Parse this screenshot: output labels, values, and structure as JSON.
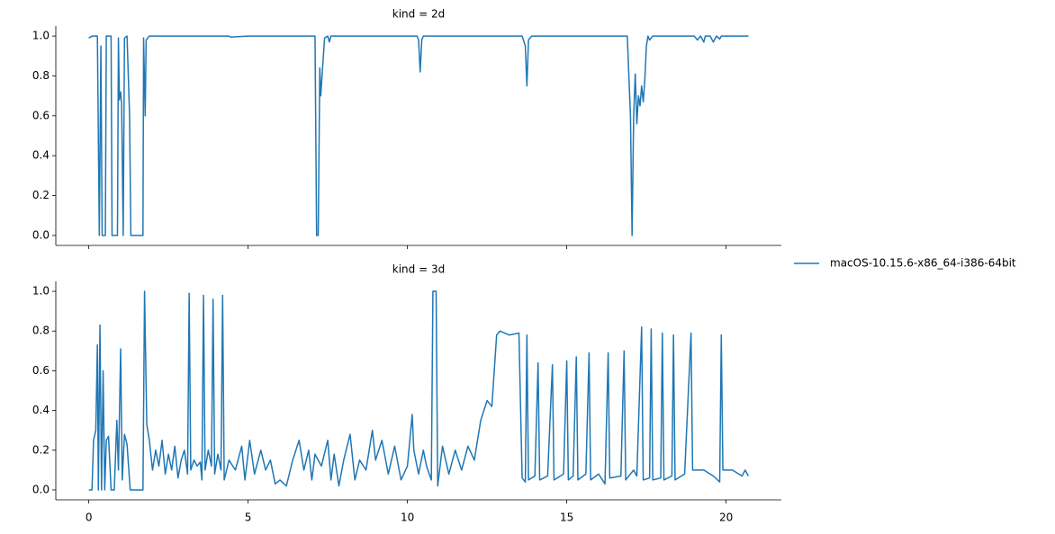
{
  "chart_data": [
    {
      "type": "line",
      "title": "kind = 2d",
      "x": [
        0,
        0.1,
        0.2,
        0.27,
        0.33,
        0.38,
        0.42,
        0.48,
        0.52,
        0.55,
        0.7,
        0.73,
        0.9,
        0.93,
        0.96,
        1.0,
        1.03,
        1.08,
        1.12,
        1.2,
        1.28,
        1.32,
        1.5,
        1.7,
        1.72,
        1.77,
        1.8,
        1.9,
        3,
        4.4,
        4.45,
        5,
        7.1,
        7.15,
        7.2,
        7.25,
        7.28,
        7.32,
        7.4,
        7.5,
        7.55,
        7.6,
        8,
        10.3,
        10.35,
        10.4,
        10.45,
        10.5,
        13.6,
        13.7,
        13.75,
        13.8,
        13.9,
        16.9,
        17.0,
        17.05,
        17.1,
        17.15,
        17.2,
        17.25,
        17.3,
        17.35,
        17.4,
        17.45,
        17.5,
        17.55,
        17.6,
        17.7,
        19,
        19.1,
        19.2,
        19.3,
        19.35,
        19.5,
        19.6,
        19.7,
        19.8,
        19.85,
        20.7
      ],
      "series": [
        {
          "name": "macOS-10.15.6-x86_64-i386-64bit",
          "color": "#1f77b4",
          "values": [
            0.99,
            1,
            1,
            1,
            0,
            0.95,
            0,
            0,
            0,
            1,
            1,
            0,
            0,
            0.99,
            0.68,
            0.72,
            0.66,
            0,
            0.99,
            1,
            0.6,
            0,
            0,
            0,
            0.99,
            0.6,
            0.98,
            1,
            1,
            1,
            0.995,
            1,
            1,
            0,
            0,
            0.84,
            0.7,
            0.8,
            0.99,
            1,
            0.97,
            1,
            1,
            1,
            0.98,
            0.82,
            0.98,
            1,
            1,
            0.95,
            0.75,
            0.98,
            1,
            1,
            0.6,
            0,
            0.6,
            0.81,
            0.56,
            0.7,
            0.65,
            0.75,
            0.67,
            0.78,
            0.95,
            1,
            0.98,
            1,
            1,
            0.98,
            1,
            0.97,
            1,
            1,
            0.97,
            1,
            0.985,
            1,
            1
          ]
        }
      ],
      "xlim": [
        -1.035,
        21.735
      ],
      "xticks": [
        0,
        5,
        10,
        15,
        20
      ],
      "ylim": [
        -0.05,
        1.05
      ],
      "yticks": [
        {
          "value": 0,
          "label": "0.0"
        },
        {
          "value": 0.2,
          "label": "0.2"
        },
        {
          "value": 0.4,
          "label": "0.4"
        },
        {
          "value": 0.6,
          "label": "0.6"
        },
        {
          "value": 0.8,
          "label": "0.8"
        },
        {
          "value": 1,
          "label": "1.0"
        }
      ]
    },
    {
      "type": "line",
      "title": "kind = 3d",
      "x": [
        0,
        0.1,
        0.15,
        0.22,
        0.27,
        0.3,
        0.35,
        0.4,
        0.45,
        0.5,
        0.55,
        0.62,
        0.7,
        0.8,
        0.88,
        0.93,
        1.0,
        1.05,
        1.12,
        1.2,
        1.3,
        1.5,
        1.7,
        1.75,
        1.82,
        1.9,
        2.0,
        2.1,
        2.2,
        2.3,
        2.4,
        2.5,
        2.6,
        2.7,
        2.8,
        2.9,
        3.0,
        3.1,
        3.15,
        3.2,
        3.3,
        3.4,
        3.5,
        3.55,
        3.6,
        3.65,
        3.75,
        3.85,
        3.9,
        3.95,
        4.05,
        4.15,
        4.2,
        4.25,
        4.4,
        4.6,
        4.8,
        4.9,
        5.05,
        5.2,
        5.4,
        5.55,
        5.7,
        5.85,
        6.0,
        6.2,
        6.4,
        6.6,
        6.75,
        6.9,
        7.0,
        7.1,
        7.3,
        7.5,
        7.6,
        7.7,
        7.85,
        8.0,
        8.2,
        8.35,
        8.5,
        8.7,
        8.9,
        9.0,
        9.2,
        9.4,
        9.6,
        9.8,
        10.0,
        10.15,
        10.2,
        10.35,
        10.5,
        10.6,
        10.75,
        10.8,
        10.9,
        10.95,
        11.1,
        11.3,
        11.5,
        11.7,
        11.9,
        12.1,
        12.3,
        12.5,
        12.65,
        12.8,
        12.9,
        13.2,
        13.5,
        13.6,
        13.7,
        13.75,
        13.8,
        14.0,
        14.1,
        14.15,
        14.4,
        14.55,
        14.6,
        14.9,
        15.0,
        15.05,
        15.2,
        15.3,
        15.35,
        15.6,
        15.7,
        15.75,
        16.0,
        16.2,
        16.3,
        16.35,
        16.7,
        16.8,
        16.85,
        17.1,
        17.2,
        17.35,
        17.4,
        17.6,
        17.65,
        17.7,
        17.95,
        18.0,
        18.05,
        18.3,
        18.35,
        18.4,
        18.7,
        18.9,
        18.95,
        19.3,
        19.6,
        19.8,
        19.85,
        19.9,
        20.2,
        20.5,
        20.6,
        20.7
      ],
      "series": [
        {
          "color": "#1f77b4",
          "values": [
            0,
            0,
            0.25,
            0.3,
            0.73,
            0,
            0.83,
            0,
            0.6,
            0,
            0.25,
            0.27,
            0,
            0,
            0.35,
            0.1,
            0.71,
            0.05,
            0.28,
            0.23,
            0,
            0,
            0,
            1.0,
            0.33,
            0.25,
            0.1,
            0.2,
            0.12,
            0.25,
            0.08,
            0.18,
            0.1,
            0.22,
            0.06,
            0.15,
            0.2,
            0.08,
            0.99,
            0.1,
            0.15,
            0.12,
            0.14,
            0.05,
            0.98,
            0.1,
            0.2,
            0.12,
            0.96,
            0.08,
            0.18,
            0.1,
            0.98,
            0.05,
            0.15,
            0.1,
            0.22,
            0.05,
            0.25,
            0.08,
            0.2,
            0.1,
            0.15,
            0.03,
            0.05,
            0.02,
            0.15,
            0.25,
            0.1,
            0.2,
            0.05,
            0.18,
            0.12,
            0.25,
            0.05,
            0.18,
            0.02,
            0.15,
            0.28,
            0.05,
            0.15,
            0.1,
            0.3,
            0.15,
            0.25,
            0.08,
            0.22,
            0.05,
            0.12,
            0.38,
            0.2,
            0.08,
            0.2,
            0.12,
            0.05,
            1.0,
            1.0,
            0.02,
            0.22,
            0.08,
            0.2,
            0.1,
            0.22,
            0.15,
            0.35,
            0.45,
            0.42,
            0.78,
            0.8,
            0.78,
            0.79,
            0.06,
            0.04,
            0.78,
            0.05,
            0.07,
            0.64,
            0.05,
            0.07,
            0.63,
            0.05,
            0.08,
            0.65,
            0.05,
            0.07,
            0.67,
            0.05,
            0.08,
            0.69,
            0.05,
            0.08,
            0.03,
            0.69,
            0.06,
            0.07,
            0.7,
            0.05,
            0.1,
            0.07,
            0.82,
            0.05,
            0.06,
            0.81,
            0.05,
            0.06,
            0.79,
            0.05,
            0.07,
            0.78,
            0.05,
            0.08,
            0.79,
            0.1,
            0.1,
            0.07,
            0.04,
            0.78,
            0.1,
            0.1,
            0.07,
            0.1,
            0.07
          ]
        }
      ],
      "xlim": [
        -1.035,
        21.735
      ],
      "xticks": [
        0,
        5,
        10,
        15,
        20
      ],
      "ylim": [
        -0.05,
        1.05
      ],
      "yticks": [
        {
          "value": 0,
          "label": "0.0"
        },
        {
          "value": 0.2,
          "label": "0.2"
        },
        {
          "value": 0.4,
          "label": "0.4"
        },
        {
          "value": 0.6,
          "label": "0.6"
        },
        {
          "value": 0.8,
          "label": "0.8"
        },
        {
          "value": 1,
          "label": "1.0"
        }
      ]
    }
  ]
}
